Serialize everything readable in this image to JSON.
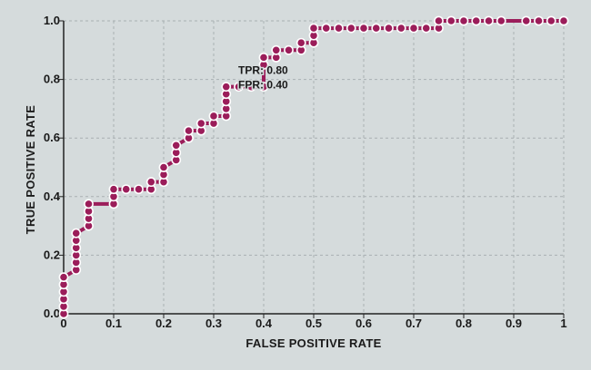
{
  "chart_data": {
    "type": "line",
    "xlabel": "FALSE POSITIVE RATE",
    "ylabel": "TRUE POSITIVE RATE",
    "xlim": [
      0,
      1
    ],
    "ylim": [
      0,
      1
    ],
    "x_ticks": [
      "0",
      "0.1",
      "0.2",
      "0.3",
      "0.4",
      "0.5",
      "0.6",
      "0.7",
      "0.8",
      "0.9",
      "1"
    ],
    "y_ticks": [
      "0.0",
      "0.2",
      "0.4",
      "0.6",
      "0.8",
      "1.0"
    ],
    "grid": true,
    "line_color": "#9b1d5a",
    "annotation": {
      "x": 0.4,
      "y": 0.8,
      "lines": [
        "TPR: 0.80",
        "FPR: 0.40"
      ]
    },
    "series": [
      {
        "x": [
          0,
          0,
          0,
          0,
          0,
          0,
          0.025,
          0.025,
          0.025,
          0.025,
          0.025,
          0.025,
          0.05,
          0.05,
          0.05,
          0.05,
          0.1,
          0.1,
          0.1,
          0.125,
          0.15,
          0.175,
          0.175,
          0.2,
          0.2,
          0.2,
          0.225,
          0.225,
          0.225,
          0.25,
          0.25,
          0.275,
          0.275,
          0.3,
          0.3,
          0.325,
          0.325,
          0.325,
          0.325,
          0.325,
          0.35,
          0.375,
          0.4,
          0.4,
          0.4,
          0.425,
          0.425,
          0.45,
          0.475,
          0.475,
          0.5,
          0.5,
          0.5,
          0.525,
          0.55,
          0.575,
          0.6,
          0.625,
          0.65,
          0.675,
          0.7,
          0.725,
          0.75,
          0.75,
          0.775,
          0.8,
          0.825,
          0.85,
          0.875,
          0.925,
          0.95,
          0.975,
          1
        ],
        "y": [
          0,
          0.025,
          0.05,
          0.075,
          0.1,
          0.125,
          0.15,
          0.175,
          0.2,
          0.225,
          0.25,
          0.275,
          0.3,
          0.325,
          0.35,
          0.375,
          0.375,
          0.4,
          0.425,
          0.425,
          0.425,
          0.425,
          0.45,
          0.45,
          0.475,
          0.5,
          0.525,
          0.55,
          0.575,
          0.6,
          0.625,
          0.625,
          0.65,
          0.65,
          0.675,
          0.675,
          0.7,
          0.725,
          0.75,
          0.775,
          0.775,
          0.775,
          0.775,
          0.85,
          0.875,
          0.875,
          0.9,
          0.9,
          0.9,
          0.925,
          0.925,
          0.95,
          0.975,
          0.975,
          0.975,
          0.975,
          0.975,
          0.975,
          0.975,
          0.975,
          0.975,
          0.975,
          0.975,
          1,
          1,
          1,
          1,
          1,
          1,
          1,
          1,
          1,
          1
        ]
      }
    ]
  }
}
